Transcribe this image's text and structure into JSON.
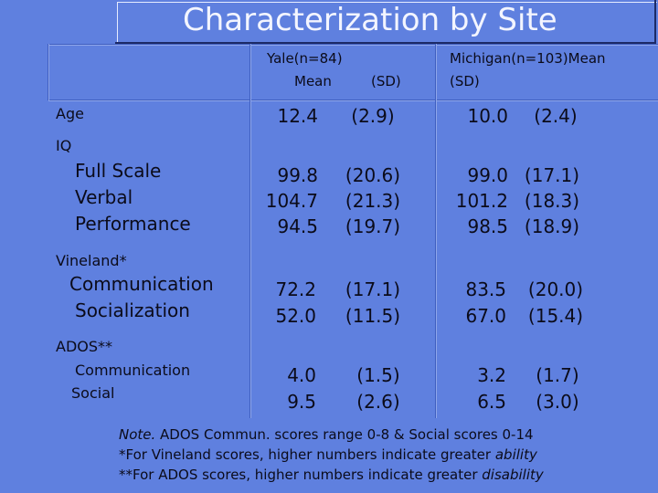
{
  "title": "Characterization by Site",
  "header": {
    "yale_line1": "Yale(n=84)",
    "yale_mean": "Mean",
    "yale_sd": "(SD)",
    "michigan_line1": "Michigan(n=103)Mean",
    "michigan_line2": "(SD)"
  },
  "rows": {
    "age": {
      "label": "Age",
      "yale_mean": "12.4",
      "yale_sd": "(2.9)",
      "mich_mean": "10.0",
      "mich_sd": "(2.4)"
    },
    "iq": {
      "label": "IQ",
      "items": [
        {
          "label": "Full Scale",
          "yale_mean": "99.8",
          "yale_sd": "(20.6)",
          "mich_mean": "99.0",
          "mich_sd": "(17.1)"
        },
        {
          "label": "Verbal",
          "yale_mean": "104.7",
          "yale_sd": "(21.3)",
          "mich_mean": "101.2",
          "mich_sd": "(18.3)"
        },
        {
          "label": "Performance",
          "yale_mean": "94.5",
          "yale_sd": "(19.7)",
          "mich_mean": "98.5",
          "mich_sd": "(18.9)"
        }
      ]
    },
    "vineland": {
      "label": "Vineland*",
      "items": [
        {
          "label": "Communication",
          "yale_mean": "72.2",
          "yale_sd": "(17.1)",
          "mich_mean": "83.5",
          "mich_sd": "(20.0)"
        },
        {
          "label": "Socialization",
          "yale_mean": "52.0",
          "yale_sd": "(11.5)",
          "mich_mean": "67.0",
          "mich_sd": "(15.4)"
        }
      ]
    },
    "ados": {
      "label": "ADOS**",
      "items": [
        {
          "label": "Communication",
          "yale_mean": "4.0",
          "yale_sd": "(1.5)",
          "mich_mean": "3.2",
          "mich_sd": "(1.7)"
        },
        {
          "label": "Social",
          "yale_mean": "9.5",
          "yale_sd": "(2.6)",
          "mich_mean": "6.5",
          "mich_sd": "(3.0)"
        }
      ]
    }
  },
  "notes": {
    "line1_italic": "Note.",
    "line1_rest": " ADOS Commun. scores range 0-8 & Social scores 0-14",
    "line2_text": "*For Vineland scores, higher numbers indicate greater ",
    "line2_italic": "ability",
    "line3_text": "**For ADOS scores, higher numbers indicate greater ",
    "line3_italic": "disability"
  }
}
